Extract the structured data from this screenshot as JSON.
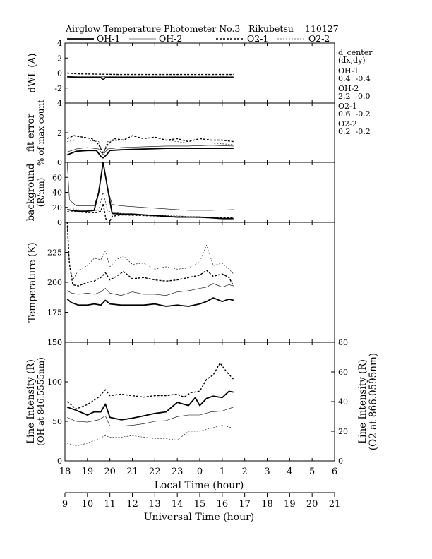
{
  "chart_data": {
    "type": "line",
    "title": "Airglow Temperature Photometer No.3",
    "station": "Rikubetsu",
    "date": "110127",
    "legend": [
      {
        "name": "OH-1",
        "style": "solid-thick"
      },
      {
        "name": "OH-2",
        "style": "solid-thin"
      },
      {
        "name": "O2-1",
        "style": "dashed-thick"
      },
      {
        "name": "O2-2",
        "style": "dashed-thin"
      }
    ],
    "x_lt": {
      "label": "Local Time (hour)",
      "ticks": [
        "18",
        "19",
        "20",
        "21",
        "22",
        "23",
        "0",
        "1",
        "2",
        "3",
        "4",
        "5",
        "6"
      ]
    },
    "x_ut": {
      "label": "Universal Time (hour)",
      "ticks": [
        "9",
        "10",
        "11",
        "12",
        "13",
        "14",
        "15",
        "16",
        "17",
        "18",
        "19",
        "20",
        "21"
      ],
      "range": [
        9,
        21
      ]
    },
    "d_center": {
      "header": "d_center",
      "subheader": "(dx,dy)",
      "entries": [
        {
          "name": "OH-1",
          "value": "0.4  -0.4"
        },
        {
          "name": "OH-2",
          "value": "2.2   0.0"
        },
        {
          "name": "O2-1",
          "value": "0.6  -0.2"
        },
        {
          "name": "O2-2",
          "value": "0.2  -0.2"
        }
      ]
    },
    "panels": [
      {
        "id": "dwl",
        "ylabel": [
          "dWL (A)"
        ],
        "ylim": [
          -4,
          4
        ],
        "ticks": [
          "4",
          "2",
          "0",
          "-2"
        ],
        "series": {
          "OH-1": {
            "t": [
              9.1,
              10.0,
              10.6,
              10.7,
              10.8,
              11.5,
              12.5,
              13.5,
              14.5,
              15.5,
              16.5
            ],
            "v": [
              -0.5,
              -0.6,
              -0.6,
              -0.9,
              -0.6,
              -0.6,
              -0.6,
              -0.6,
              -0.6,
              -0.6,
              -0.6
            ]
          },
          "OH-2": {
            "t": [
              9.1,
              16.5
            ],
            "v": [
              -0.5,
              -0.5
            ]
          },
          "O2-1": {
            "t": [
              9.1,
              9.5,
              10.5,
              11.5,
              12.5,
              13.5,
              14.5,
              15.5,
              16.5
            ],
            "v": [
              0.0,
              -0.1,
              -0.15,
              -0.2,
              -0.2,
              -0.2,
              -0.2,
              -0.2,
              -0.2
            ]
          },
          "O2-2": {
            "t": [
              9.1,
              16.5
            ],
            "v": [
              -0.4,
              -0.4
            ]
          }
        }
      },
      {
        "id": "fit",
        "ylabel": [
          "fit error",
          "% of max count"
        ],
        "ylim": [
          0,
          4
        ],
        "ticks": [
          "4",
          "2",
          "0"
        ],
        "series": {
          "OH-1": {
            "t": [
              9.1,
              9.5,
              10.0,
              10.4,
              10.6,
              10.7,
              10.85,
              11.0,
              11.5,
              12.5,
              13.5,
              14.5,
              15.5,
              16.5
            ],
            "v": [
              0.5,
              0.75,
              0.8,
              0.8,
              0.4,
              0.3,
              0.5,
              0.8,
              0.85,
              0.9,
              0.95,
              0.95,
              0.95,
              0.95
            ]
          },
          "OH-2": {
            "t": [
              9.1,
              9.5,
              10.0,
              10.5,
              10.7,
              10.9,
              11.5,
              12.5,
              13.5,
              14.5,
              15.5,
              16.5
            ],
            "v": [
              0.7,
              0.9,
              1.0,
              0.9,
              0.5,
              0.9,
              1.0,
              1.05,
              1.1,
              1.1,
              1.15,
              1.1
            ]
          },
          "O2-1": {
            "t": [
              9.1,
              9.4,
              9.8,
              10.2,
              10.5,
              10.7,
              10.9,
              11.2,
              11.6,
              12.0,
              12.5,
              13.0,
              13.5,
              14.0,
              14.5,
              15.0,
              15.5,
              16.0,
              16.5
            ],
            "v": [
              1.6,
              1.8,
              1.7,
              1.6,
              1.2,
              0.6,
              1.2,
              1.6,
              1.5,
              1.8,
              1.6,
              1.7,
              1.5,
              1.6,
              1.4,
              1.6,
              1.5,
              1.5,
              1.4
            ]
          },
          "O2-2": {
            "t": [
              9.1,
              9.5,
              10.0,
              10.5,
              10.7,
              10.9,
              11.5,
              12.5,
              13.5,
              14.5,
              15.5,
              16.5
            ],
            "v": [
              1.4,
              1.5,
              1.5,
              1.4,
              0.6,
              1.4,
              1.5,
              1.5,
              1.5,
              1.3,
              1.3,
              1.2
            ]
          }
        }
      },
      {
        "id": "bg",
        "ylabel": [
          "background",
          "(R/nm)"
        ],
        "ylim": [
          0,
          80
        ],
        "ticks": [
          "60",
          "40",
          "20",
          "0"
        ],
        "series": {
          "OH-1": {
            "t": [
              9.1,
              9.3,
              9.6,
              10.0,
              10.3,
              10.5,
              10.7,
              10.9,
              11.1,
              11.5,
              12.0,
              12.5,
              13.0,
              13.5,
              14.0,
              14.5,
              15.0,
              15.5,
              16.0,
              16.5
            ],
            "v": [
              17,
              16,
              15,
              15,
              16,
              40,
              80,
              45,
              12,
              11,
              11,
              10,
              9,
              8,
              7,
              7,
              7,
              6,
              5,
              5
            ]
          },
          "OH-2": {
            "t": [
              9.1,
              9.2,
              9.5,
              10.0,
              10.3,
              10.5,
              10.7,
              10.9,
              11.1,
              11.5,
              12.5,
              13.5,
              14.5,
              15.5,
              16.5
            ],
            "v": [
              80,
              30,
              22,
              22,
              22,
              40,
              78,
              45,
              24,
              22,
              20,
              18,
              16,
              16,
              17
            ]
          },
          "O2-1": {
            "t": [
              9.1,
              9.5,
              10.0,
              10.4,
              10.6,
              10.7,
              10.8,
              10.9,
              11.1,
              11.5,
              12.5,
              13.5,
              14.5,
              15.5,
              16.5
            ],
            "v": [
              14,
              14,
              13,
              13,
              15,
              25,
              8,
              -5,
              8,
              10,
              9,
              8,
              7,
              6,
              6
            ]
          },
          "O2-2": {
            "t": [
              9.1,
              9.5,
              10.0,
              10.5,
              10.7,
              10.9,
              11.5,
              12.5,
              13.5,
              14.5,
              15.5,
              16.5
            ],
            "v": [
              20,
              17,
              16,
              16,
              40,
              15,
              12,
              10,
              9,
              8,
              7,
              7
            ]
          }
        }
      },
      {
        "id": "temp",
        "ylabel": [
          "Temperature (K)"
        ],
        "ylim": [
          150,
          250
        ],
        "ticks": [
          "225",
          "200",
          "175",
          "150"
        ],
        "series": {
          "OH-1": {
            "t": [
              9.1,
              9.3,
              9.6,
              10.0,
              10.3,
              10.6,
              10.8,
              11.0,
              11.5,
              12.0,
              12.5,
              13.0,
              13.5,
              14.0,
              14.5,
              15.0,
              15.3,
              15.6,
              16.0,
              16.3,
              16.5
            ],
            "v": [
              186,
              183,
              181,
              181,
              182,
              181,
              185,
              182,
              181,
              181,
              181,
              182,
              180,
              181,
              180,
              182,
              184,
              187,
              184,
              186,
              185
            ]
          },
          "OH-2": {
            "t": [
              9.1,
              9.3,
              9.6,
              10.0,
              10.3,
              10.6,
              10.8,
              11.0,
              11.5,
              12.0,
              12.5,
              13.0,
              13.5,
              14.0,
              14.5,
              15.0,
              15.3,
              15.6,
              16.0,
              16.3,
              16.5
            ],
            "v": [
              193,
              191,
              190,
              191,
              190,
              192,
              195,
              191,
              189,
              192,
              190,
              190,
              189,
              192,
              193,
              195,
              196,
              199,
              196,
              198,
              197
            ]
          },
          "O2-1": {
            "t": [
              9.1,
              9.2,
              9.35,
              9.6,
              10.0,
              10.3,
              10.6,
              10.8,
              11.0,
              11.3,
              11.6,
              12.0,
              12.5,
              13.0,
              13.5,
              14.0,
              14.5,
              15.0,
              15.3,
              15.6,
              16.0,
              16.3,
              16.5
            ],
            "v": [
              250,
              215,
              198,
              197,
              200,
              201,
              204,
              208,
              202,
              205,
              209,
              203,
              204,
              202,
              201,
              202,
              204,
              206,
              210,
              205,
              207,
              204,
              197
            ]
          },
          "O2-2": {
            "t": [
              9.1,
              9.2,
              9.35,
              9.6,
              10.0,
              10.3,
              10.6,
              10.8,
              11.0,
              11.3,
              11.6,
              12.0,
              12.5,
              13.0,
              13.5,
              14.0,
              14.5,
              15.0,
              15.3,
              15.6,
              16.0,
              16.3,
              16.5
            ],
            "v": [
              250,
              215,
              202,
              210,
              214,
              220,
              219,
              226,
              213,
              219,
              222,
              215,
              216,
              211,
              213,
              211,
              212,
              217,
              231,
              214,
              216,
              211,
              207
            ]
          }
        }
      },
      {
        "id": "int",
        "ylabel": [
          "Line Intensity (R)",
          "(OH at 846.5555nm)"
        ],
        "ylabel_right": [
          "Line Intensity (R)",
          "(O2 at 866.0595nm)"
        ],
        "ylim": [
          0,
          150
        ],
        "ylim_right": [
          0,
          80
        ],
        "ticks": [
          "150",
          "100",
          "50",
          "0"
        ],
        "ticks_right": [
          "80",
          "60",
          "40",
          "20",
          "0"
        ],
        "series": {
          "OH-1": {
            "t": [
              9.1,
              9.5,
              10.0,
              10.3,
              10.6,
              10.8,
              11.0,
              11.5,
              12.0,
              12.5,
              13.0,
              13.5,
              14.0,
              14.5,
              14.8,
              15.0,
              15.3,
              15.6,
              16.0,
              16.3,
              16.5
            ],
            "v": [
              68,
              64,
              58,
              62,
              62,
              72,
              55,
              52,
              54,
              57,
              60,
              62,
              74,
              70,
              80,
              70,
              79,
              82,
              80,
              88,
              87
            ]
          },
          "OH-2": {
            "t": [
              9.1,
              9.5,
              10.0,
              10.5,
              10.8,
              11.0,
              11.5,
              12.0,
              12.5,
              13.0,
              13.5,
              14.0,
              14.5,
              15.0,
              15.5,
              16.0,
              16.5
            ],
            "v": [
              55,
              50,
              49,
              52,
              57,
              44,
              44,
              45,
              47,
              50,
              51,
              56,
              58,
              58,
              62,
              63,
              68
            ]
          },
          "O2-1": {
            "t": [
              9.1,
              9.5,
              10.0,
              10.5,
              10.8,
              11.0,
              11.5,
              12.0,
              12.5,
              13.0,
              13.5,
              14.0,
              14.3,
              14.6,
              15.0,
              15.3,
              15.6,
              15.9,
              16.2,
              16.5
            ],
            "v": [
              40,
              35,
              38,
              43,
              48,
              44,
              45,
              44,
              43,
              44,
              44,
              45,
              43,
              46,
              47,
              55,
              58,
              66,
              60,
              55
            ]
          },
          "O2-2": {
            "t": [
              9.1,
              9.5,
              10.0,
              10.5,
              10.8,
              11.0,
              11.5,
              12.0,
              12.5,
              13.0,
              13.5,
              14.0,
              14.5,
              15.0,
              15.5,
              16.0,
              16.5
            ],
            "v": [
              12,
              10,
              12,
              15,
              17,
              16,
              16,
              17,
              16,
              15,
              15,
              14,
              20,
              20,
              22,
              24,
              22
            ]
          }
        }
      }
    ]
  }
}
